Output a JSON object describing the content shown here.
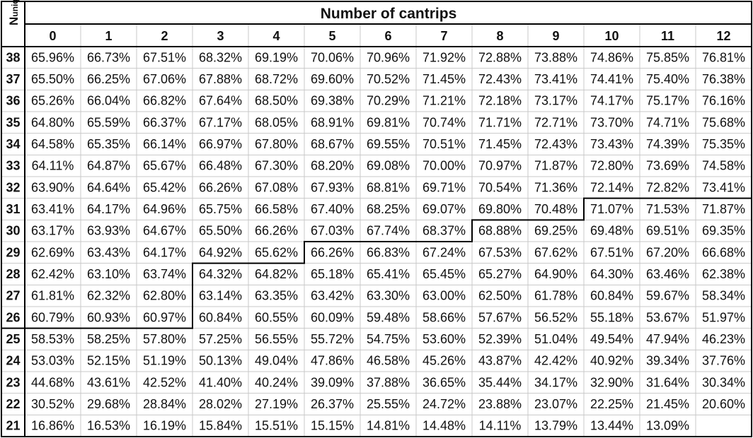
{
  "chart_data": {
    "type": "table",
    "title": "Number of cantrips",
    "row_header_label": "N",
    "row_header_subscript": "uniq",
    "columns": [
      "0",
      "1",
      "2",
      "3",
      "4",
      "5",
      "6",
      "7",
      "8",
      "9",
      "10",
      "11",
      "12"
    ],
    "rows": [
      {
        "label": "38",
        "values": [
          "65.96%",
          "66.73%",
          "67.51%",
          "68.32%",
          "69.19%",
          "70.06%",
          "70.96%",
          "71.92%",
          "72.88%",
          "73.88%",
          "74.86%",
          "75.85%",
          "76.81%"
        ]
      },
      {
        "label": "37",
        "values": [
          "65.50%",
          "66.25%",
          "67.06%",
          "67.88%",
          "68.72%",
          "69.60%",
          "70.52%",
          "71.45%",
          "72.43%",
          "73.41%",
          "74.41%",
          "75.40%",
          "76.38%"
        ]
      },
      {
        "label": "36",
        "values": [
          "65.26%",
          "66.04%",
          "66.82%",
          "67.64%",
          "68.50%",
          "69.38%",
          "70.29%",
          "71.21%",
          "72.18%",
          "73.17%",
          "74.17%",
          "75.17%",
          "76.16%"
        ]
      },
      {
        "label": "35",
        "values": [
          "64.80%",
          "65.59%",
          "66.37%",
          "67.17%",
          "68.05%",
          "68.91%",
          "69.81%",
          "70.74%",
          "71.71%",
          "72.71%",
          "73.70%",
          "74.71%",
          "75.68%"
        ]
      },
      {
        "label": "34",
        "values": [
          "64.58%",
          "65.35%",
          "66.14%",
          "66.97%",
          "67.80%",
          "68.67%",
          "69.55%",
          "70.51%",
          "71.45%",
          "72.43%",
          "73.43%",
          "74.39%",
          "75.35%"
        ]
      },
      {
        "label": "33",
        "values": [
          "64.11%",
          "64.87%",
          "65.67%",
          "66.48%",
          "67.30%",
          "68.20%",
          "69.08%",
          "70.00%",
          "70.97%",
          "71.87%",
          "72.80%",
          "73.69%",
          "74.58%"
        ]
      },
      {
        "label": "32",
        "values": [
          "63.90%",
          "64.64%",
          "65.42%",
          "66.26%",
          "67.08%",
          "67.93%",
          "68.81%",
          "69.71%",
          "70.54%",
          "71.36%",
          "72.14%",
          "72.82%",
          "73.41%"
        ]
      },
      {
        "label": "31",
        "values": [
          "63.41%",
          "64.17%",
          "64.96%",
          "65.75%",
          "66.58%",
          "67.40%",
          "68.25%",
          "69.07%",
          "69.80%",
          "70.48%",
          "71.07%",
          "71.53%",
          "71.87%"
        ]
      },
      {
        "label": "30",
        "values": [
          "63.17%",
          "63.93%",
          "64.67%",
          "65.50%",
          "66.26%",
          "67.03%",
          "67.74%",
          "68.37%",
          "68.88%",
          "69.25%",
          "69.48%",
          "69.51%",
          "69.35%"
        ]
      },
      {
        "label": "29",
        "values": [
          "62.69%",
          "63.43%",
          "64.17%",
          "64.92%",
          "65.62%",
          "66.26%",
          "66.83%",
          "67.24%",
          "67.53%",
          "67.62%",
          "67.51%",
          "67.20%",
          "66.68%"
        ]
      },
      {
        "label": "28",
        "values": [
          "62.42%",
          "63.10%",
          "63.74%",
          "64.32%",
          "64.82%",
          "65.18%",
          "65.41%",
          "65.45%",
          "65.27%",
          "64.90%",
          "64.30%",
          "63.46%",
          "62.38%"
        ]
      },
      {
        "label": "27",
        "values": [
          "61.81%",
          "62.32%",
          "62.80%",
          "63.14%",
          "63.35%",
          "63.42%",
          "63.30%",
          "63.00%",
          "62.50%",
          "61.78%",
          "60.84%",
          "59.67%",
          "58.34%"
        ]
      },
      {
        "label": "26",
        "values": [
          "60.79%",
          "60.93%",
          "60.97%",
          "60.84%",
          "60.55%",
          "60.09%",
          "59.48%",
          "58.66%",
          "57.67%",
          "56.52%",
          "55.18%",
          "53.67%",
          "51.97%"
        ]
      },
      {
        "label": "25",
        "values": [
          "58.53%",
          "58.25%",
          "57.80%",
          "57.25%",
          "56.55%",
          "55.72%",
          "54.75%",
          "53.60%",
          "52.39%",
          "51.04%",
          "49.54%",
          "47.94%",
          "46.23%"
        ]
      },
      {
        "label": "24",
        "values": [
          "53.03%",
          "52.15%",
          "51.19%",
          "50.13%",
          "49.04%",
          "47.86%",
          "46.58%",
          "45.26%",
          "43.87%",
          "42.42%",
          "40.92%",
          "39.34%",
          "37.76%"
        ]
      },
      {
        "label": "23",
        "values": [
          "44.68%",
          "43.61%",
          "42.52%",
          "41.40%",
          "40.24%",
          "39.09%",
          "37.88%",
          "36.65%",
          "35.44%",
          "34.17%",
          "32.90%",
          "31.64%",
          "30.34%"
        ]
      },
      {
        "label": "22",
        "values": [
          "30.52%",
          "29.68%",
          "28.84%",
          "28.02%",
          "27.19%",
          "26.37%",
          "25.55%",
          "24.72%",
          "23.88%",
          "23.07%",
          "22.25%",
          "21.45%",
          "20.60%"
        ]
      },
      {
        "label": "21",
        "values": [
          "16.86%",
          "16.53%",
          "16.19%",
          "15.84%",
          "15.51%",
          "15.15%",
          "14.81%",
          "14.48%",
          "14.11%",
          "13.79%",
          "13.44%",
          "13.09%",
          ""
        ]
      }
    ],
    "boundary_row_by_column": [
      "26",
      "26",
      "26",
      "29",
      "29",
      "30",
      "30",
      "30",
      "31",
      "31",
      "32",
      "32",
      "32"
    ]
  }
}
